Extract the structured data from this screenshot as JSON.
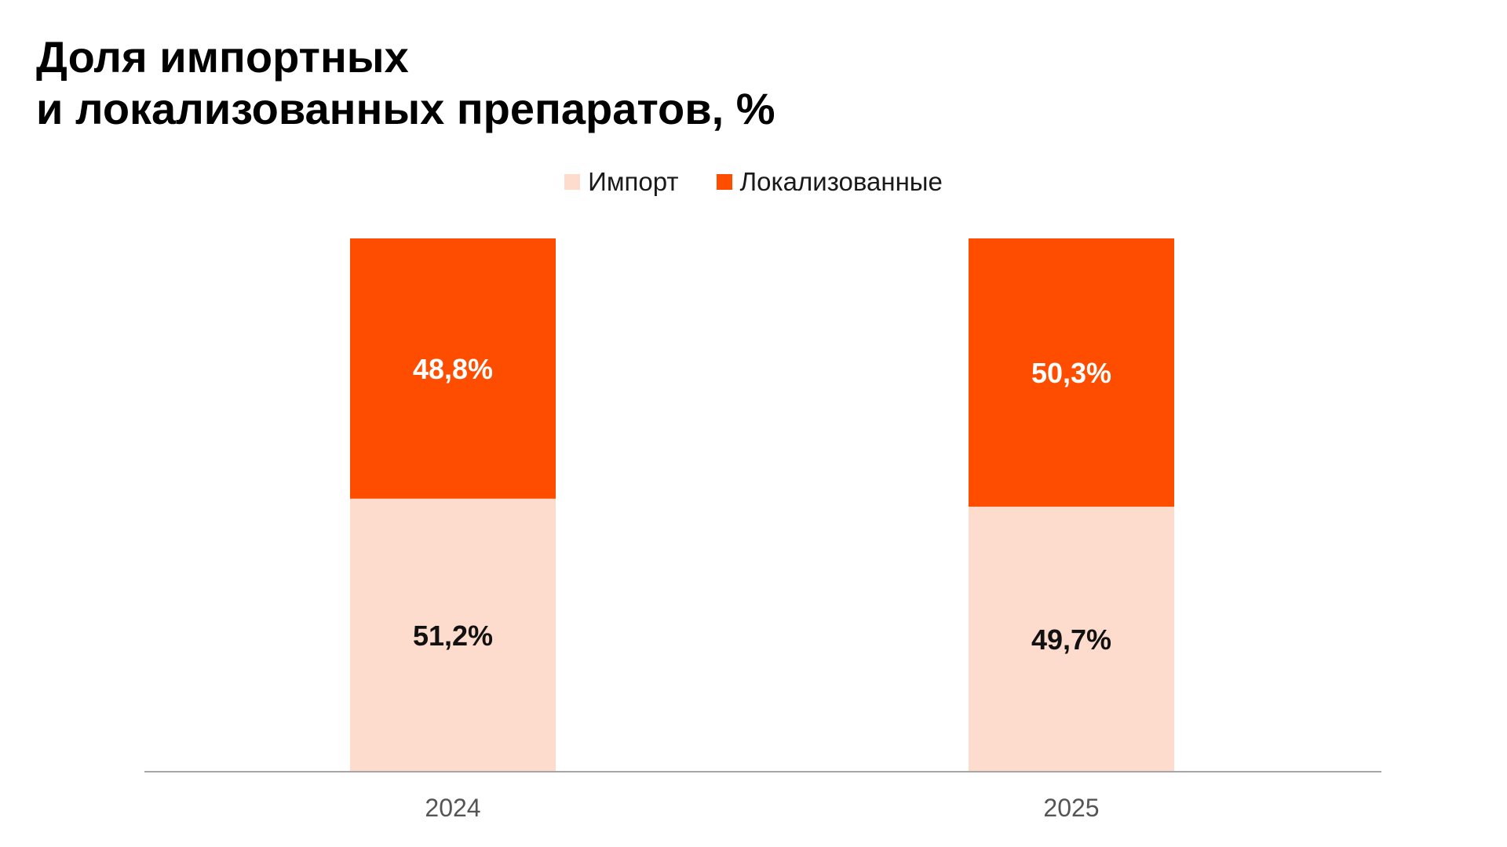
{
  "chart_data": {
    "type": "bar",
    "stacked": true,
    "title_lines": [
      "Доля импортных",
      "и локализованных препаратов, %"
    ],
    "categories": [
      "2024",
      "2025"
    ],
    "series": [
      {
        "name": "Импорт",
        "values": [
          51.2,
          49.7
        ],
        "labels": [
          "51,2%",
          "49,7%"
        ],
        "color": "#fddccd",
        "label_color": "#111111"
      },
      {
        "name": "Локализованные",
        "values": [
          48.8,
          50.3
        ],
        "labels": [
          "48,8%",
          "50,3%"
        ],
        "color": "#ff4d00",
        "label_color": "#ffffff"
      }
    ],
    "ylim": [
      0,
      100
    ],
    "legend_position": "top-center",
    "grid": false
  }
}
